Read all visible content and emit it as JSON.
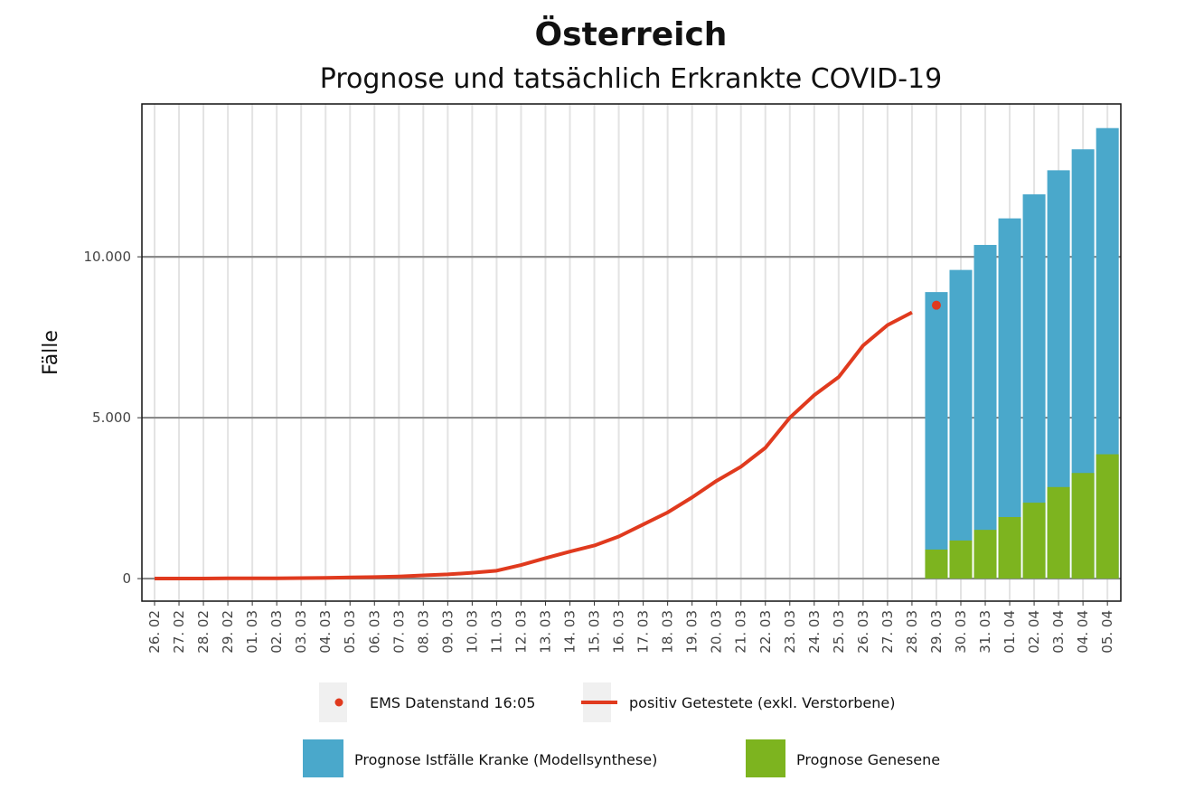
{
  "chart_data": {
    "type": "bar+line",
    "title": "Österreich",
    "subtitle": "Prognose und tatsächlich Erkrankte COVID-19",
    "ylabel": "Fälle",
    "xlabel": "",
    "ylim": [
      -700,
      14750
    ],
    "yticks": [
      0,
      5000,
      10000
    ],
    "ytick_labels": [
      "0",
      "5.000",
      "10.000"
    ],
    "grid": true,
    "legend_position": "bottom",
    "categories": [
      "26. 02",
      "27. 02",
      "28. 02",
      "29. 02",
      "01. 03",
      "02. 03",
      "03. 03",
      "04. 03",
      "05. 03",
      "06. 03",
      "07. 03",
      "08. 03",
      "09. 03",
      "10. 03",
      "11. 03",
      "12. 03",
      "13. 03",
      "14. 03",
      "15. 03",
      "16. 03",
      "17. 03",
      "18. 03",
      "19. 03",
      "20. 03",
      "21. 03",
      "22. 03",
      "23. 03",
      "24. 03",
      "25. 03",
      "26. 03",
      "27. 03",
      "28. 03",
      "29. 03",
      "30. 03",
      "31. 03",
      "01. 04",
      "02. 04",
      "03. 04",
      "04. 04",
      "05. 04"
    ],
    "line": {
      "name": "positiv Getestete (exkl. Verstorbene)",
      "color": "#e03a1e",
      "categories": [
        "26. 02",
        "27. 02",
        "28. 02",
        "29. 02",
        "01. 03",
        "02. 03",
        "03. 03",
        "04. 03",
        "05. 03",
        "06. 03",
        "07. 03",
        "08. 03",
        "09. 03",
        "10. 03",
        "11. 03",
        "12. 03",
        "13. 03",
        "14. 03",
        "15. 03",
        "16. 03",
        "17. 03",
        "18. 03",
        "19. 03",
        "20. 03",
        "21. 03",
        "22. 03",
        "23. 03",
        "24. 03",
        "25. 03",
        "26. 03",
        "27. 03",
        "28. 03"
      ],
      "values": [
        2,
        3,
        3,
        9,
        10,
        10,
        18,
        24,
        37,
        47,
        66,
        99,
        131,
        182,
        246,
        421,
        636,
        841,
        1028,
        1308,
        1682,
        2056,
        2523,
        3037,
        3477,
        4065,
        5000,
        5701,
        6262,
        7243,
        7879,
        8271
      ]
    },
    "point": {
      "name": "EMS Datenstand 16:05",
      "color": "#e03a1e",
      "category": "29. 03",
      "value": 8495
    },
    "bars": {
      "categories": [
        "29. 03",
        "30. 03",
        "31. 03",
        "01. 04",
        "02. 04",
        "03. 04",
        "04. 04",
        "05. 04"
      ],
      "series": [
        {
          "name": "Prognose Istfälle Kranke (Modellsynthese)",
          "color": "#4aa8cb",
          "values": [
            8904,
            9592,
            10369,
            11194,
            11942,
            12689,
            13340,
            14000
          ]
        },
        {
          "name": "Prognose Genesene",
          "color": "#7db41f",
          "values": [
            903,
            1184,
            1515,
            1913,
            2359,
            2845,
            3282,
            3864
          ]
        }
      ]
    }
  }
}
